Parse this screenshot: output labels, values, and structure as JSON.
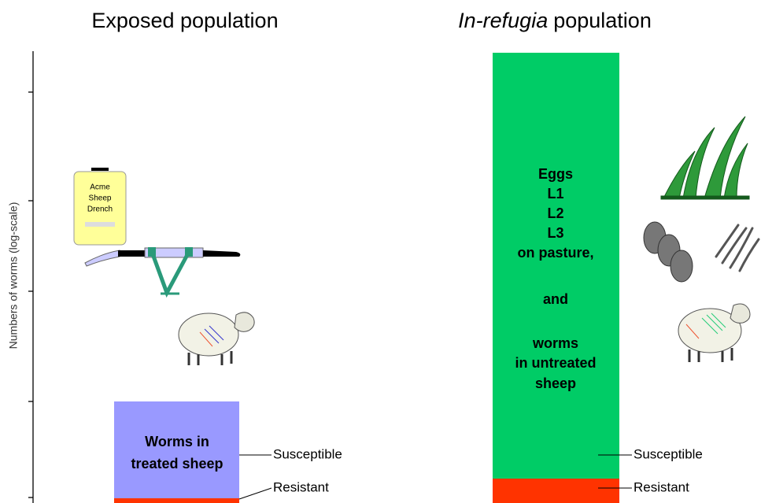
{
  "titles": {
    "exposed": "Exposed population",
    "refugia_italic": "In-refugia",
    "refugia_rest": "population"
  },
  "y_axis_label": "Numbers of worms (log-scale)",
  "bars": {
    "exposed": {
      "label": [
        "Worms in",
        "treated sheep"
      ]
    },
    "refugia": {
      "label": [
        "Eggs",
        "L1",
        "L2",
        "L3",
        "on pasture,",
        "and",
        "worms",
        "in untreated",
        "sheep"
      ]
    }
  },
  "legend": {
    "susceptible": "Susceptible",
    "resistant": "Resistant"
  },
  "bottle": [
    "Acme",
    "Sheep",
    "Drench"
  ]
}
